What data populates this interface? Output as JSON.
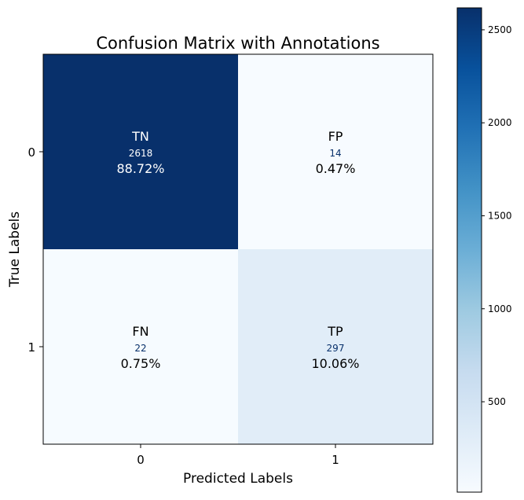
{
  "chart_data": {
    "type": "heatmap",
    "title": "Confusion Matrix with Annotations",
    "xlabel": "Predicted Labels",
    "ylabel": "True Labels",
    "x_categories": [
      "0",
      "1"
    ],
    "y_categories": [
      "0",
      "1"
    ],
    "cells": [
      {
        "row": 0,
        "col": 0,
        "tag": "TN",
        "count": "2618",
        "value": 2618,
        "percent": "88.72%"
      },
      {
        "row": 0,
        "col": 1,
        "tag": "FP",
        "count": "14",
        "value": 14,
        "percent": "0.47%"
      },
      {
        "row": 1,
        "col": 0,
        "tag": "FN",
        "count": "22",
        "value": 22,
        "percent": "0.75%"
      },
      {
        "row": 1,
        "col": 1,
        "tag": "TP",
        "count": "297",
        "value": 297,
        "percent": "10.06%"
      }
    ],
    "colormap": "Blues",
    "vmin": 14,
    "vmax": 2618,
    "colorbar": {
      "ticks": [
        500,
        1000,
        1500,
        2000,
        2500
      ],
      "tick_labels": [
        "500",
        "1000",
        "1500",
        "2000",
        "2500"
      ]
    },
    "grid": false
  }
}
